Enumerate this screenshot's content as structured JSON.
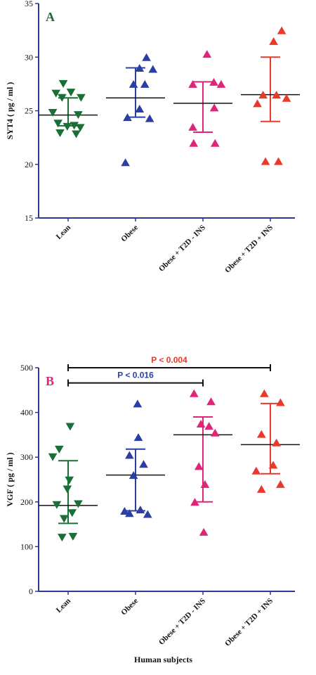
{
  "colors": {
    "axis": "#2b3990",
    "Lean": "#1a6f37",
    "Obese": "#2b3fa3",
    "Obese + T2D - INS": "#e02478",
    "Obese + T2D + INS": "#e8392a",
    "panelA": "#1a6f37",
    "panelB": "#e02478"
  },
  "chart_data": [
    {
      "type": "scatter",
      "panel_label": "A",
      "ylabel": "SYT4 ( pg / ml )",
      "xlabel": "",
      "ylim": [
        15,
        35
      ],
      "yticks": [
        15,
        20,
        25,
        30,
        35
      ],
      "categories": [
        "Lean",
        "Obese",
        "Obese + T2D - INS",
        "Obese + T2D + INS"
      ],
      "series": [
        {
          "name": "Lean",
          "marker": "triangle-down",
          "values": [
            27.5,
            26.7,
            26.6,
            26.2,
            26.2,
            24.8,
            24.6,
            23.8,
            23.6,
            23.5,
            23.4,
            22.9,
            22.8
          ],
          "offsets": [
            -0.12,
            0.07,
            -0.3,
            -0.15,
            0.32,
            -0.38,
            0.25,
            -0.25,
            0.15,
            -0.02,
            0.3,
            -0.2,
            0.2
          ],
          "median": 24.6,
          "err_low": 23.6,
          "err_high": 26.2
        },
        {
          "name": "Obese",
          "marker": "triangle-up",
          "values": [
            30.0,
            29.0,
            28.9,
            27.5,
            27.5,
            25.2,
            24.4,
            24.3,
            20.2
          ],
          "offsets": [
            0.27,
            0.1,
            0.43,
            -0.05,
            0.23,
            0.1,
            -0.2,
            0.35,
            -0.25
          ],
          "median": 26.2,
          "err_low": 24.4,
          "err_high": 29.0
        },
        {
          "name": "Obese + T2D - INS",
          "marker": "triangle-up",
          "values": [
            30.3,
            27.7,
            27.5,
            27.5,
            25.3,
            23.5,
            22.0,
            22.0
          ],
          "offsets": [
            0.1,
            0.27,
            -0.25,
            0.45,
            0.28,
            -0.25,
            -0.23,
            0.3
          ],
          "median": 25.7,
          "err_low": 23.0,
          "err_high": 27.7
        },
        {
          "name": "Obese + T2D + INS",
          "marker": "triangle-up",
          "values": [
            32.5,
            31.5,
            26.5,
            26.5,
            26.2,
            25.7,
            20.3,
            20.3
          ],
          "offsets": [
            0.28,
            0.08,
            -0.18,
            0.15,
            0.4,
            -0.32,
            -0.12,
            0.2
          ],
          "median": 26.5,
          "err_low": 24.0,
          "err_high": 30.0
        }
      ],
      "annotations": []
    },
    {
      "type": "scatter",
      "panel_label": "B",
      "ylabel": "VGF ( pg / ml )",
      "xlabel": "Human subjects",
      "ylim": [
        0,
        500
      ],
      "yticks": [
        0,
        100,
        200,
        300,
        400,
        500
      ],
      "categories": [
        "Lean",
        "Obese",
        "Obese + T2D - INS",
        "Obese + T2D + INS"
      ],
      "series": [
        {
          "name": "Lean",
          "marker": "triangle-down",
          "values": [
            368,
            317,
            300,
            248,
            228,
            195,
            193,
            175,
            162,
            122,
            120
          ],
          "offsets": [
            0.05,
            -0.22,
            -0.38,
            0.03,
            -0.02,
            0.25,
            -0.28,
            0.1,
            -0.1,
            0.12,
            -0.15
          ],
          "median": 192,
          "err_low": 152,
          "err_high": 292
        },
        {
          "name": "Obese",
          "marker": "triangle-up",
          "values": [
            420,
            345,
            305,
            285,
            260,
            183,
            180,
            175,
            173
          ],
          "offsets": [
            0.05,
            0.07,
            -0.15,
            0.2,
            -0.05,
            0.12,
            -0.27,
            -0.15,
            0.3
          ],
          "median": 260,
          "err_low": 180,
          "err_high": 318
        },
        {
          "name": "Obese + T2D - INS",
          "marker": "triangle-up",
          "values": [
            443,
            425,
            375,
            370,
            355,
            280,
            240,
            200,
            133
          ],
          "offsets": [
            -0.22,
            0.2,
            -0.05,
            0.15,
            0.3,
            -0.1,
            0.05,
            -0.2,
            0.02
          ],
          "median": 350,
          "err_low": 200,
          "err_high": 390
        },
        {
          "name": "Obese + T2D + INS",
          "marker": "triangle-up",
          "values": [
            443,
            423,
            352,
            333,
            283,
            270,
            240,
            229
          ],
          "offsets": [
            -0.15,
            0.25,
            -0.22,
            0.15,
            0.07,
            -0.35,
            0.25,
            -0.22
          ],
          "median": 328,
          "err_low": 263,
          "err_high": 420
        }
      ],
      "annotations": [
        {
          "text": "P < 0.016",
          "from": "Lean",
          "to": "Obese + T2D - INS",
          "y": 466,
          "color": "#2b3fa3"
        },
        {
          "text": "P < 0.004",
          "from": "Lean",
          "to": "Obese + T2D + INS",
          "y": 500,
          "color": "#e8392a"
        }
      ]
    }
  ]
}
